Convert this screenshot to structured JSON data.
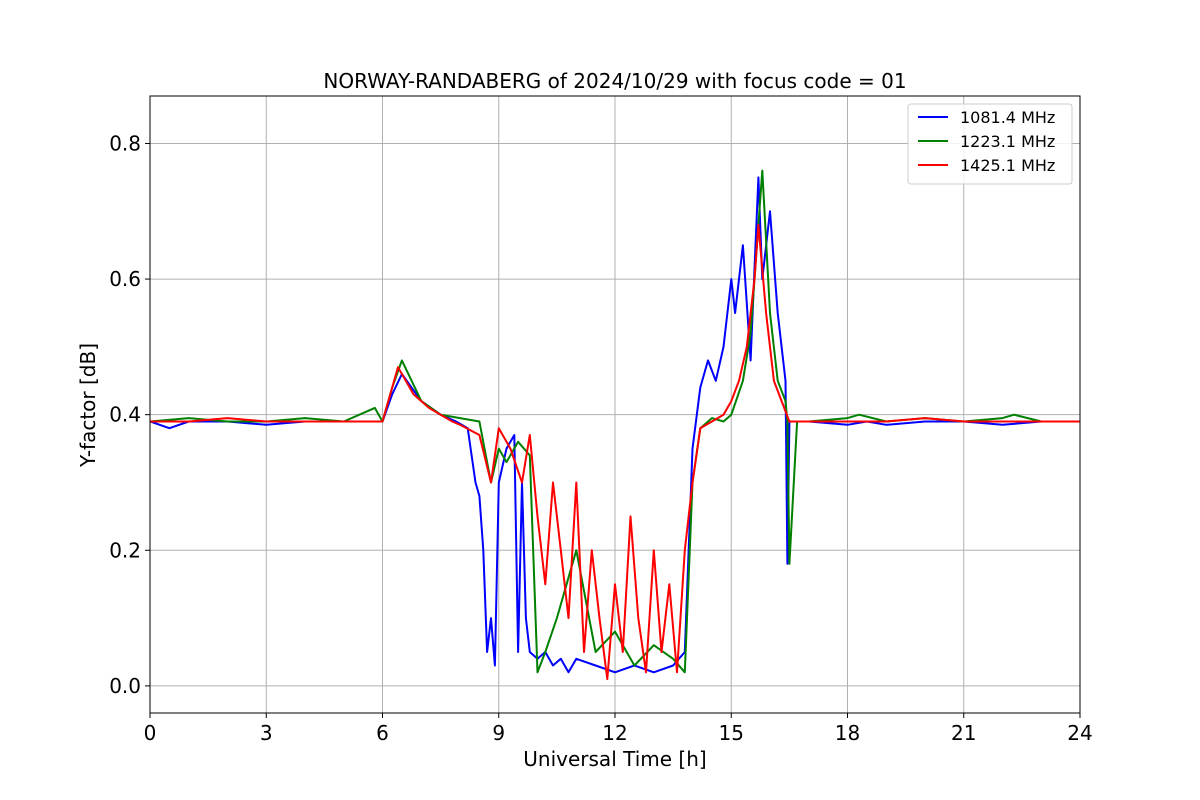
{
  "chart_data": {
    "type": "line",
    "title": "NORWAY-RANDABERG of 2024/10/29 with focus code = 01",
    "xlabel": "Universal Time [h]",
    "ylabel": "Y-factor [dB]",
    "xlim": [
      0,
      24
    ],
    "ylim": [
      -0.04,
      0.87
    ],
    "xticks": [
      0,
      3,
      6,
      9,
      12,
      15,
      18,
      21,
      24
    ],
    "xtick_labels": [
      "0",
      "3",
      "6",
      "9",
      "12",
      "15",
      "18",
      "21",
      "24"
    ],
    "yticks": [
      0.0,
      0.2,
      0.4,
      0.6,
      0.8
    ],
    "ytick_labels": [
      "0.0",
      "0.2",
      "0.4",
      "0.6",
      "0.8"
    ],
    "grid": true,
    "legend_position": "top-right",
    "series": [
      {
        "name": "1081.4 MHz",
        "color": "#0000ff",
        "x": [
          0,
          0.5,
          1,
          2,
          3,
          4,
          5,
          6,
          6.25,
          6.5,
          7,
          7.5,
          7.9,
          8.2,
          8.4,
          8.5,
          8.6,
          8.7,
          8.8,
          8.9,
          9.0,
          9.2,
          9.4,
          9.5,
          9.6,
          9.7,
          9.8,
          10.0,
          10.2,
          10.4,
          10.6,
          10.8,
          11.0,
          11.5,
          12.0,
          12.5,
          13.0,
          13.5,
          13.8,
          14.0,
          14.2,
          14.4,
          14.6,
          14.8,
          15.0,
          15.1,
          15.3,
          15.5,
          15.7,
          15.8,
          16.0,
          16.2,
          16.4,
          16.45,
          16.5,
          16.6,
          17,
          18,
          18.5,
          19,
          20,
          21,
          22,
          23,
          24
        ],
        "y": [
          0.39,
          0.38,
          0.39,
          0.39,
          0.385,
          0.39,
          0.39,
          0.39,
          0.43,
          0.46,
          0.42,
          0.4,
          0.39,
          0.38,
          0.3,
          0.28,
          0.2,
          0.05,
          0.1,
          0.03,
          0.3,
          0.35,
          0.37,
          0.05,
          0.3,
          0.1,
          0.05,
          0.04,
          0.05,
          0.03,
          0.04,
          0.02,
          0.04,
          0.03,
          0.02,
          0.03,
          0.02,
          0.03,
          0.05,
          0.35,
          0.44,
          0.48,
          0.45,
          0.5,
          0.6,
          0.55,
          0.65,
          0.48,
          0.75,
          0.6,
          0.7,
          0.55,
          0.45,
          0.18,
          0.39,
          0.39,
          0.39,
          0.385,
          0.39,
          0.385,
          0.39,
          0.39,
          0.385,
          0.39,
          0.39
        ]
      },
      {
        "name": "1223.1 MHz",
        "color": "#008000",
        "x": [
          0,
          1,
          2,
          3,
          4,
          5,
          5.8,
          6,
          6.25,
          6.5,
          7,
          7.5,
          8,
          8.5,
          8.8,
          9.0,
          9.2,
          9.5,
          9.8,
          10.0,
          10.2,
          10.5,
          11.0,
          11.5,
          12.0,
          12.5,
          13.0,
          13.5,
          13.8,
          14.0,
          14.2,
          14.5,
          14.8,
          15.0,
          15.3,
          15.5,
          15.7,
          15.8,
          16.0,
          16.2,
          16.4,
          16.45,
          16.5,
          16.7,
          17,
          18,
          18.3,
          19,
          20,
          21,
          22,
          22.3,
          23,
          24
        ],
        "y": [
          0.39,
          0.395,
          0.39,
          0.39,
          0.395,
          0.39,
          0.41,
          0.39,
          0.44,
          0.48,
          0.42,
          0.4,
          0.395,
          0.39,
          0.3,
          0.35,
          0.33,
          0.36,
          0.34,
          0.02,
          0.05,
          0.1,
          0.2,
          0.05,
          0.08,
          0.03,
          0.06,
          0.04,
          0.02,
          0.3,
          0.38,
          0.395,
          0.39,
          0.4,
          0.45,
          0.52,
          0.68,
          0.76,
          0.55,
          0.45,
          0.42,
          0.39,
          0.18,
          0.39,
          0.39,
          0.395,
          0.4,
          0.39,
          0.395,
          0.39,
          0.395,
          0.4,
          0.39,
          0.39
        ]
      },
      {
        "name": "1425.1 MHz",
        "color": "#ff0000",
        "x": [
          0,
          1,
          2,
          3,
          4,
          5,
          6,
          6.25,
          6.4,
          6.6,
          6.8,
          7.0,
          7.2,
          7.5,
          7.8,
          8.0,
          8.5,
          8.8,
          9.0,
          9.3,
          9.6,
          9.8,
          10.0,
          10.2,
          10.4,
          10.6,
          10.8,
          11.0,
          11.2,
          11.4,
          11.6,
          11.8,
          12.0,
          12.2,
          12.4,
          12.6,
          12.8,
          13.0,
          13.2,
          13.4,
          13.6,
          13.8,
          14.0,
          14.2,
          14.5,
          14.8,
          15.0,
          15.2,
          15.4,
          15.6,
          15.7,
          15.9,
          16.1,
          16.3,
          16.5,
          17,
          18,
          19,
          20,
          21,
          22,
          23,
          24
        ],
        "y": [
          0.39,
          0.39,
          0.395,
          0.39,
          0.39,
          0.39,
          0.39,
          0.44,
          0.47,
          0.45,
          0.43,
          0.42,
          0.41,
          0.4,
          0.39,
          0.385,
          0.37,
          0.3,
          0.38,
          0.35,
          0.3,
          0.37,
          0.25,
          0.15,
          0.3,
          0.2,
          0.1,
          0.3,
          0.05,
          0.2,
          0.1,
          0.01,
          0.15,
          0.05,
          0.25,
          0.1,
          0.02,
          0.2,
          0.05,
          0.15,
          0.02,
          0.2,
          0.3,
          0.38,
          0.39,
          0.4,
          0.42,
          0.45,
          0.5,
          0.6,
          0.68,
          0.55,
          0.45,
          0.42,
          0.39,
          0.39,
          0.39,
          0.39,
          0.395,
          0.39,
          0.39,
          0.39,
          0.39
        ]
      }
    ]
  }
}
